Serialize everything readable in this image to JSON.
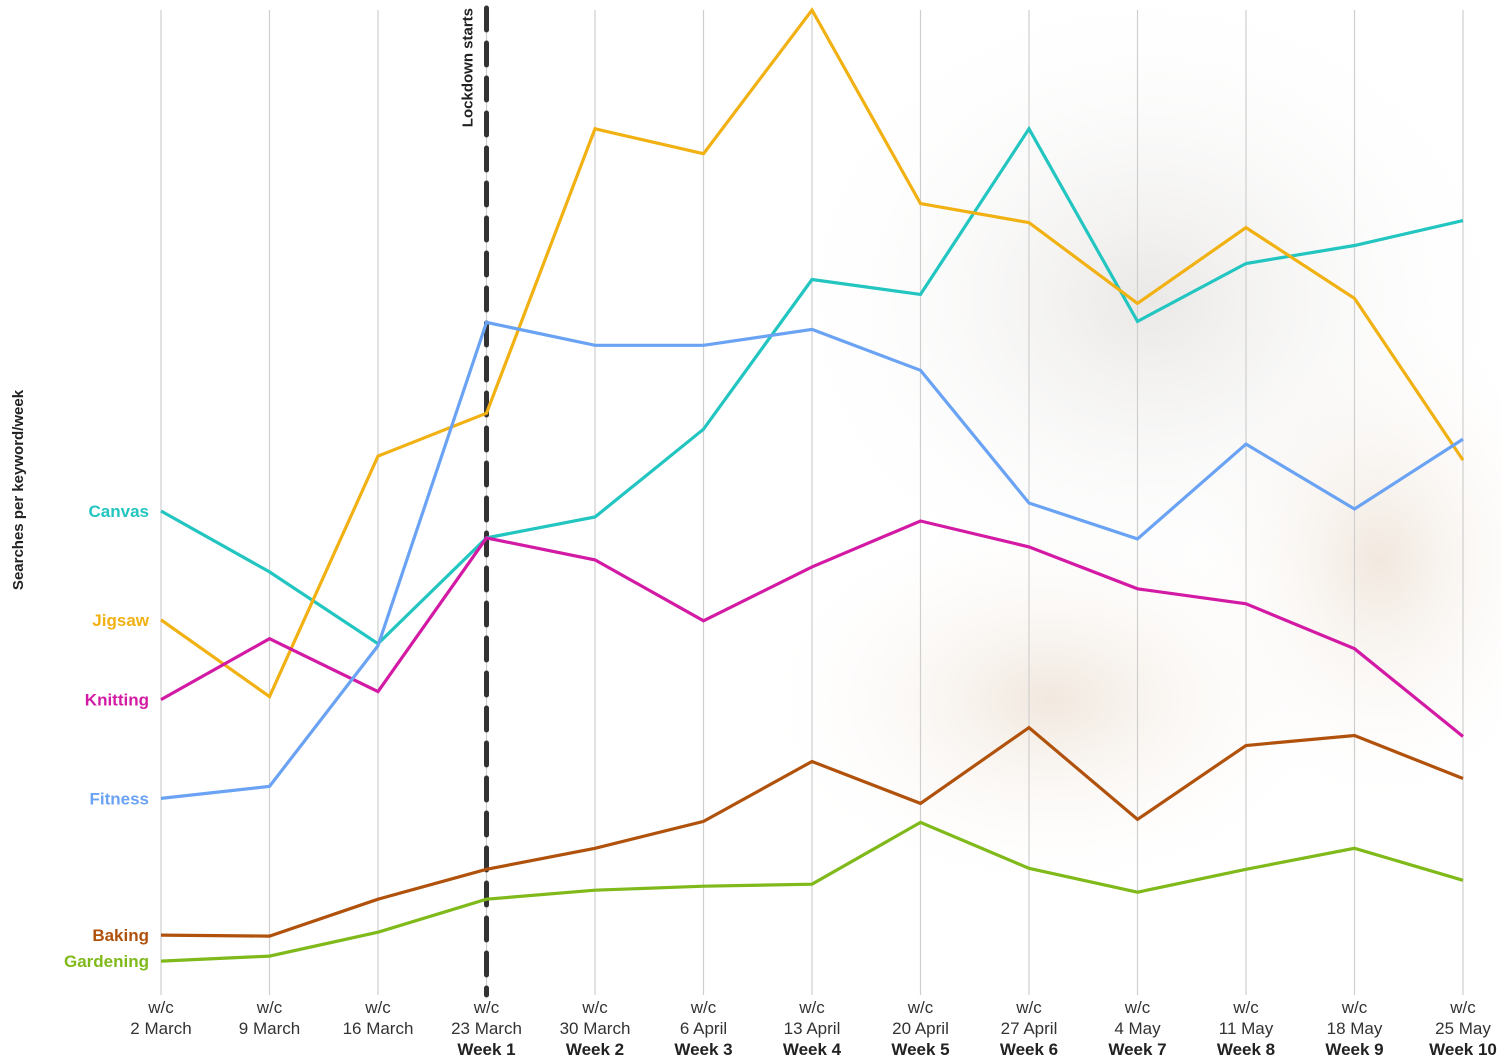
{
  "chart_data": {
    "type": "line",
    "title": "",
    "xlabel": "",
    "ylabel": "Searches per keyword/week",
    "grid": "vertical",
    "legend": "inline-left",
    "ylim": [
      0,
      100
    ],
    "categories": [
      {
        "top": "w/c",
        "date": "2 March",
        "week": ""
      },
      {
        "top": "w/c",
        "date": "9 March",
        "week": ""
      },
      {
        "top": "w/c",
        "date": "16 March",
        "week": ""
      },
      {
        "top": "w/c",
        "date": "23 March",
        "week": "Week 1"
      },
      {
        "top": "w/c",
        "date": "30 March",
        "week": "Week 2"
      },
      {
        "top": "w/c",
        "date": "6 April",
        "week": "Week 3"
      },
      {
        "top": "w/c",
        "date": "13 April",
        "week": "Week 4"
      },
      {
        "top": "w/c",
        "date": "20 April",
        "week": "Week 5"
      },
      {
        "top": "w/c",
        "date": "27 April",
        "week": "Week 6"
      },
      {
        "top": "w/c",
        "date": "4 May",
        "week": "Week 7"
      },
      {
        "top": "w/c",
        "date": "11 May",
        "week": "Week 8"
      },
      {
        "top": "w/c",
        "date": "18 May",
        "week": "Week 9"
      },
      {
        "top": "w/c",
        "date": "25 May",
        "week": "Week 10"
      }
    ],
    "annotation": {
      "label": "Lockdown starts",
      "category_index": 3
    },
    "series": [
      {
        "name": "Canvas",
        "color": "#22c5c0",
        "values": [
          49.8,
          43.7,
          36.5,
          47.1,
          49.2,
          58.0,
          73.0,
          71.5,
          88.1,
          68.8,
          74.6,
          76.4,
          78.9
        ]
      },
      {
        "name": "Jigsaw",
        "color": "#f1b113",
        "values": [
          38.9,
          31.2,
          55.3,
          59.6,
          88.1,
          85.6,
          100.0,
          80.6,
          78.7,
          70.6,
          78.2,
          71.1,
          54.9
        ]
      },
      {
        "name": "Knitting",
        "color": "#d31aa4",
        "values": [
          30.9,
          37.0,
          31.7,
          47.1,
          44.9,
          38.8,
          44.2,
          48.8,
          46.2,
          42.0,
          40.5,
          36.0,
          27.2
        ]
      },
      {
        "name": "Fitness",
        "color": "#6aa3f4",
        "values": [
          21.0,
          22.2,
          36.3,
          68.7,
          66.4,
          66.4,
          68.0,
          63.9,
          50.6,
          47.0,
          56.5,
          50.0,
          57.0
        ]
      },
      {
        "name": "Baking",
        "color": "#b0520c",
        "values": [
          7.3,
          7.2,
          10.9,
          13.9,
          16.0,
          18.7,
          24.7,
          20.5,
          28.1,
          18.9,
          26.3,
          27.3,
          23.0
        ]
      },
      {
        "name": "Gardening",
        "color": "#7fb91a",
        "values": [
          4.7,
          5.2,
          7.6,
          10.9,
          11.8,
          12.2,
          12.4,
          18.6,
          14.0,
          11.6,
          13.9,
          16.0,
          12.8
        ]
      }
    ]
  }
}
